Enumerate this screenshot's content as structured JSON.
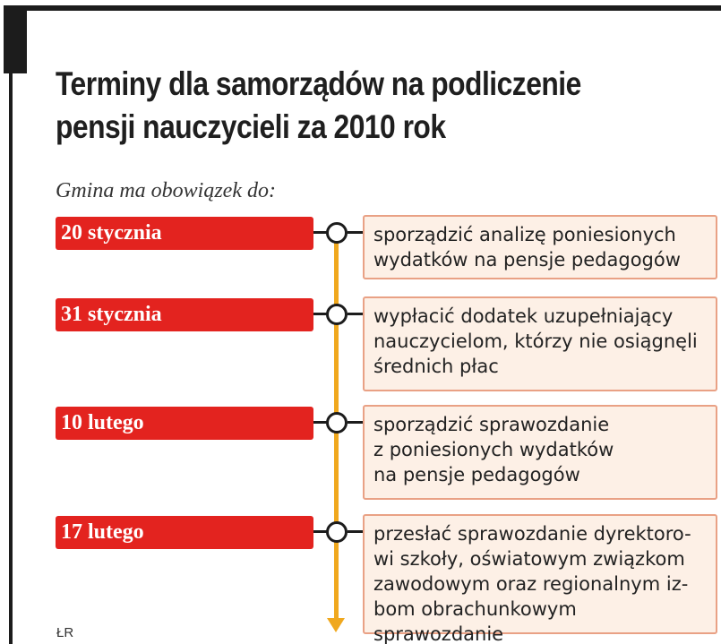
{
  "title_lines": [
    "Terminy dla samorządów na podliczenie",
    "pensji nauczycieli za 2010 rok"
  ],
  "subtitle": "Gmina ma obowiązek do:",
  "colors": {
    "date_label": "#e3231f",
    "timeline": "#f0a81e",
    "box_fill": "#fdf0e6",
    "box_border": "#e9a185"
  },
  "timeline": [
    {
      "date": "20 stycznia",
      "text": "sporządzić analizę poniesionych\nwydatków na pensje pedagogów"
    },
    {
      "date": "31 stycznia",
      "text": "wypłacić dodatek uzupełniający\nnauczycielom, którzy nie osiągnęli\nśrednich płac"
    },
    {
      "date": "10 lutego",
      "text": "sporządzić sprawozdanie\nz poniesionych wydatków\nna pensje pedagogów"
    },
    {
      "date": "17 lutego",
      "text": "przesłać sprawozdanie dyrektoro-\nwi szkoły, oświatowym związkom\nzawodowym oraz regionalnym iz-\nbom obrachunkowym sprawozdanie"
    }
  ],
  "source": "ŁR"
}
